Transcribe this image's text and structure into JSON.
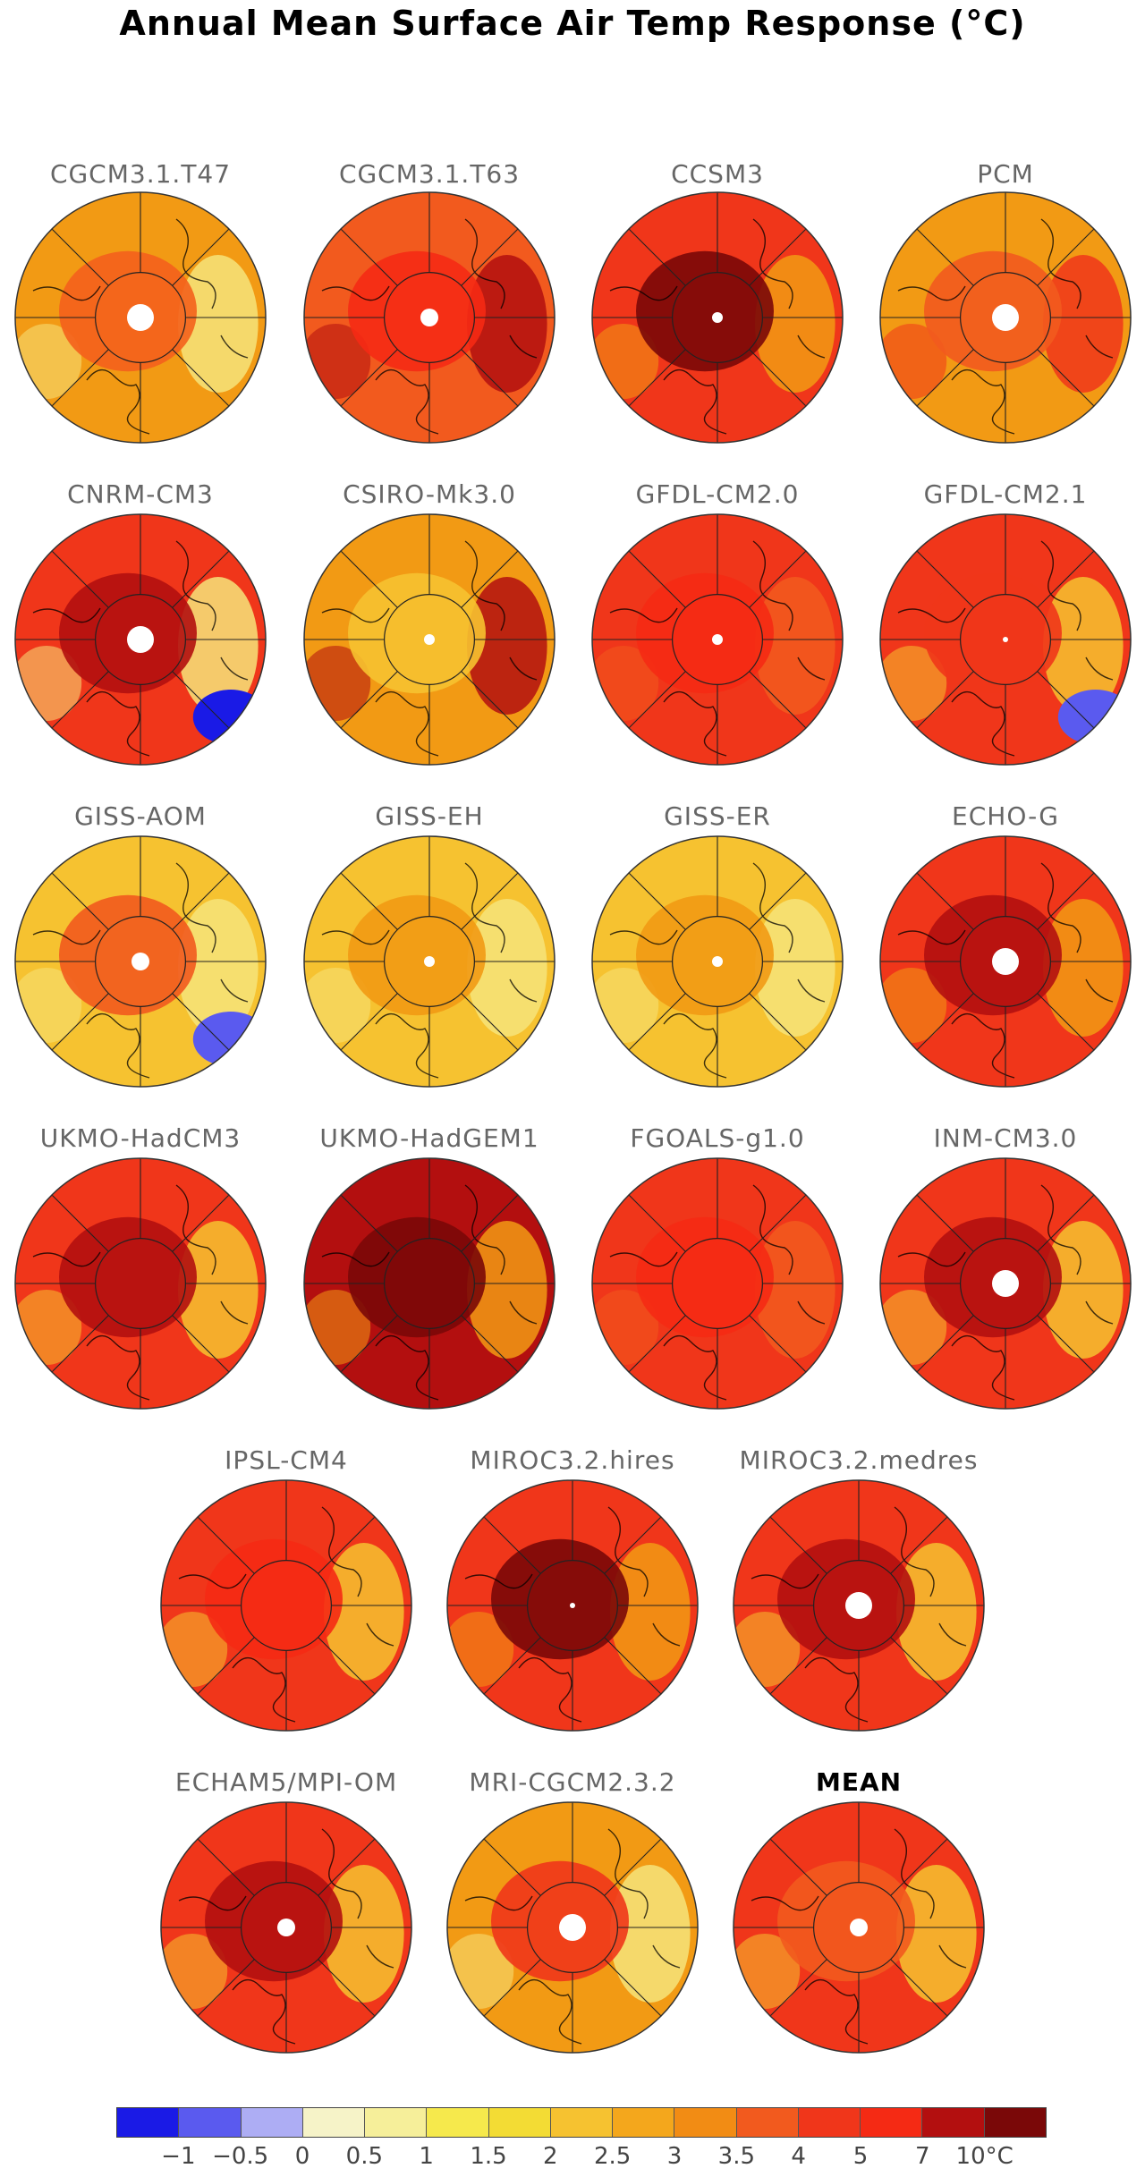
{
  "title": "Annual Mean Surface Air Temp Response (°C)",
  "panels": [
    {
      "label": "CGCM3.1.T47",
      "fill": "#f29a14",
      "core": "#f4601c",
      "patch": "#f6e47a",
      "cold": null,
      "pole": "large",
      "bold": false
    },
    {
      "label": "CGCM3.1.T63",
      "fill": "#f25a1e",
      "core": "#f52a14",
      "patch": "#b30f0f",
      "cold": null,
      "pole": "medium",
      "bold": false
    },
    {
      "label": "CCSM3",
      "fill": "#f0361a",
      "core": "#7a0808",
      "patch": "#f29a14",
      "cold": null,
      "pole": "small",
      "bold": false
    },
    {
      "label": "PCM",
      "fill": "#f29a14",
      "core": "#f25a1e",
      "patch": "#f0361a",
      "cold": null,
      "pole": "large",
      "bold": false
    },
    {
      "label": "CNRM-CM3",
      "fill": "#f0361a",
      "core": "#b30f0f",
      "patch": "#f6e47a",
      "cold": "#1a1ae6",
      "pole": "large",
      "bold": false
    },
    {
      "label": "CSIRO-Mk3.0",
      "fill": "#f29a14",
      "core": "#f6c230",
      "patch": "#b30f0f",
      "cold": null,
      "pole": "small",
      "bold": false
    },
    {
      "label": "GFDL-CM2.0",
      "fill": "#f0361a",
      "core": "#f52a14",
      "patch": "#f25a1e",
      "cold": null,
      "pole": "small",
      "bold": false
    },
    {
      "label": "GFDL-CM2.1",
      "fill": "#f0361a",
      "core": "#f0361a",
      "patch": "#f6c230",
      "cold": "#5a5aef",
      "pole": "tiny",
      "bold": false
    },
    {
      "label": "GISS-AOM",
      "fill": "#f6c230",
      "core": "#f25a1e",
      "patch": "#f6e47a",
      "cold": "#5a5aef",
      "pole": "medium",
      "bold": false
    },
    {
      "label": "GISS-EH",
      "fill": "#f6c230",
      "core": "#f29a14",
      "patch": "#f6e47a",
      "cold": null,
      "pole": "small",
      "bold": false
    },
    {
      "label": "GISS-ER",
      "fill": "#f6c230",
      "core": "#f29a14",
      "patch": "#f6e47a",
      "cold": null,
      "pole": "small",
      "bold": false
    },
    {
      "label": "ECHO-G",
      "fill": "#f0361a",
      "core": "#b30f0f",
      "patch": "#f29a14",
      "cold": null,
      "pole": "large",
      "bold": false
    },
    {
      "label": "UKMO-HadCM3",
      "fill": "#f0361a",
      "core": "#b30f0f",
      "patch": "#f6c230",
      "cold": null,
      "pole": "none",
      "bold": false
    },
    {
      "label": "UKMO-HadGEM1",
      "fill": "#b30f0f",
      "core": "#7a0808",
      "patch": "#f29a14",
      "cold": null,
      "pole": "none",
      "bold": false
    },
    {
      "label": "FGOALS-g1.0",
      "fill": "#f0361a",
      "core": "#f52a14",
      "patch": "#f25a1e",
      "cold": null,
      "pole": "none",
      "bold": false
    },
    {
      "label": "INM-CM3.0",
      "fill": "#f0361a",
      "core": "#b30f0f",
      "patch": "#f6c230",
      "cold": null,
      "pole": "large",
      "bold": false
    },
    {
      "label": "IPSL-CM4",
      "fill": "#f0361a",
      "core": "#f52a14",
      "patch": "#f6c230",
      "cold": null,
      "pole": "none",
      "bold": false
    },
    {
      "label": "MIROC3.2.hires",
      "fill": "#f0361a",
      "core": "#7a0808",
      "patch": "#f29a14",
      "cold": null,
      "pole": "tiny",
      "bold": false
    },
    {
      "label": "MIROC3.2.medres",
      "fill": "#f0361a",
      "core": "#b30f0f",
      "patch": "#f6c230",
      "cold": null,
      "pole": "large",
      "bold": false
    },
    {
      "label": "ECHAM5/MPI-OM",
      "fill": "#f0361a",
      "core": "#b30f0f",
      "patch": "#f6c230",
      "cold": null,
      "pole": "medium",
      "bold": false
    },
    {
      "label": "MRI-CGCM2.3.2",
      "fill": "#f29a14",
      "core": "#f0361a",
      "patch": "#f6e47a",
      "cold": null,
      "pole": "large",
      "bold": false
    },
    {
      "label": "MEAN",
      "fill": "#f0361a",
      "core": "#f25a1e",
      "patch": "#f6c230",
      "cold": null,
      "pole": "medium",
      "bold": true
    }
  ],
  "colorbar": {
    "colors": [
      "#1a1ae6",
      "#5a5aef",
      "#adadf4",
      "#f6f3c8",
      "#f6ef9a",
      "#f6e94c",
      "#f3dc34",
      "#f6c230",
      "#f4a71c",
      "#f28c14",
      "#f25a1e",
      "#f0361a",
      "#f52a14",
      "#b30f0f",
      "#7a0808"
    ],
    "ticks": [
      "−1",
      "−0.5",
      "0",
      "0.5",
      "1",
      "1.5",
      "2",
      "2.5",
      "3",
      "3.5",
      "4",
      "5",
      "7",
      "10°C"
    ]
  }
}
